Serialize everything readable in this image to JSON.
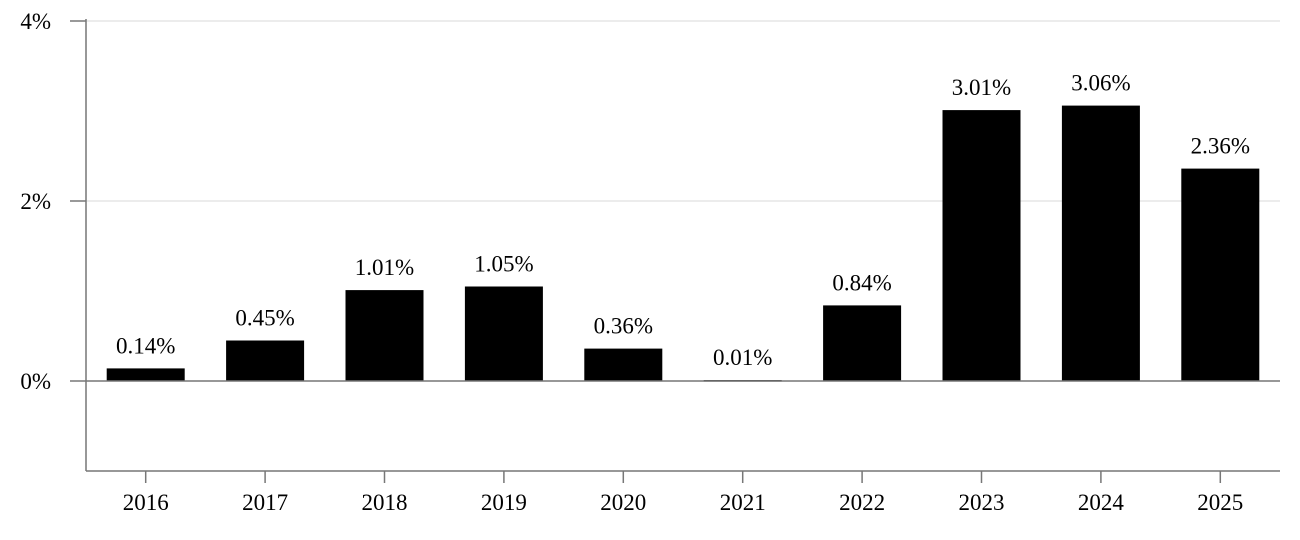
{
  "chart_data": {
    "type": "bar",
    "categories": [
      "2016",
      "2017",
      "2018",
      "2019",
      "2020",
      "2021",
      "2022",
      "2023",
      "2024",
      "2025"
    ],
    "values": [
      0.14,
      0.45,
      1.01,
      1.05,
      0.36,
      0.01,
      0.84,
      3.01,
      3.06,
      2.36
    ],
    "data_labels": [
      "0.14%",
      "0.45%",
      "1.01%",
      "1.05%",
      "0.36%",
      "0.01%",
      "0.84%",
      "3.01%",
      "3.06%",
      "2.36%"
    ],
    "ylim": [
      -1,
      4
    ],
    "yticks": [
      0,
      2,
      4
    ],
    "ytick_labels": [
      "0%",
      "2%",
      "4%"
    ],
    "grid": true,
    "bar_color": "#000000",
    "grid_color": "#e0e0e0",
    "axis_color": "#777777"
  }
}
